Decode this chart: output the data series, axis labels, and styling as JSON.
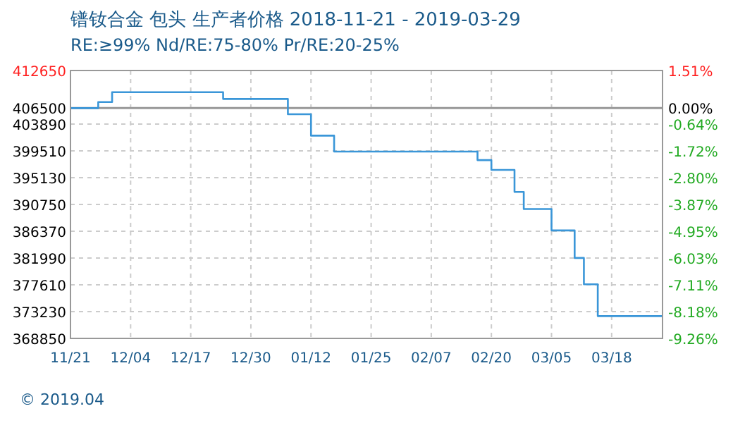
{
  "chart_data": {
    "type": "step",
    "title": "镨钕合金 包头 生产者价格 2018-11-21 - 2019-03-29",
    "subtitle": "RE:≥99% Nd/RE:75-80% Pr/RE:20-25%",
    "annotations": [
      "© 2019.04"
    ],
    "series": [
      {
        "color": "#3a96d8",
        "x": [
          "2018-11-21",
          "2018-11-27",
          "2018-11-30",
          "2018-12-24",
          "2019-01-07",
          "2019-01-12",
          "2019-01-17",
          "2019-02-17",
          "2019-02-20",
          "2019-02-25",
          "2019-02-27",
          "2019-03-05",
          "2019-03-10",
          "2019-03-12",
          "2019-03-15",
          "2019-03-29"
        ],
        "values": [
          406500,
          407500,
          409100,
          408000,
          405500,
          402000,
          399400,
          398000,
          396400,
          392800,
          390000,
          386500,
          382000,
          377700,
          372500,
          372500
        ]
      }
    ],
    "xlim": [
      "2018-11-21",
      "2019-03-29"
    ],
    "xticks": [
      {
        "value": "2018-11-21",
        "label": "11/21"
      },
      {
        "value": "2018-12-04",
        "label": "12/04"
      },
      {
        "value": "2018-12-17",
        "label": "12/17"
      },
      {
        "value": "2018-12-30",
        "label": "12/30"
      },
      {
        "value": "2019-01-12",
        "label": "01/12"
      },
      {
        "value": "2019-01-25",
        "label": "01/25"
      },
      {
        "value": "2019-02-07",
        "label": "02/07"
      },
      {
        "value": "2019-02-20",
        "label": "02/20"
      },
      {
        "value": "2019-03-05",
        "label": "03/05"
      },
      {
        "value": "2019-03-18",
        "label": "03/18"
      }
    ],
    "ylim": [
      368850,
      412650
    ],
    "yticks": [
      412650,
      406500,
      403890,
      399510,
      395130,
      390750,
      386370,
      381990,
      377610,
      373230,
      368850
    ],
    "y2lim": [
      -9.26,
      1.51
    ],
    "y2ticks": [
      {
        "value": 1.51,
        "label": "1.51%"
      },
      {
        "value": 0,
        "label": "0.00%"
      },
      {
        "value": -0.64,
        "label": "-0.64%"
      },
      {
        "value": -1.72,
        "label": "-1.72%"
      },
      {
        "value": -2.8,
        "label": "-2.80%"
      },
      {
        "value": -3.87,
        "label": "-3.87%"
      },
      {
        "value": -4.95,
        "label": "-4.95%"
      },
      {
        "value": -6.03,
        "label": "-6.03%"
      },
      {
        "value": -7.11,
        "label": "-7.11%"
      },
      {
        "value": -8.18,
        "label": "-8.18%"
      },
      {
        "value": -9.26,
        "label": "-9.26%"
      }
    ],
    "ref_lines": [
      {
        "axis": "y",
        "value": 406500,
        "color": "#999999",
        "line_style": "solid"
      }
    ],
    "grid": true
  }
}
